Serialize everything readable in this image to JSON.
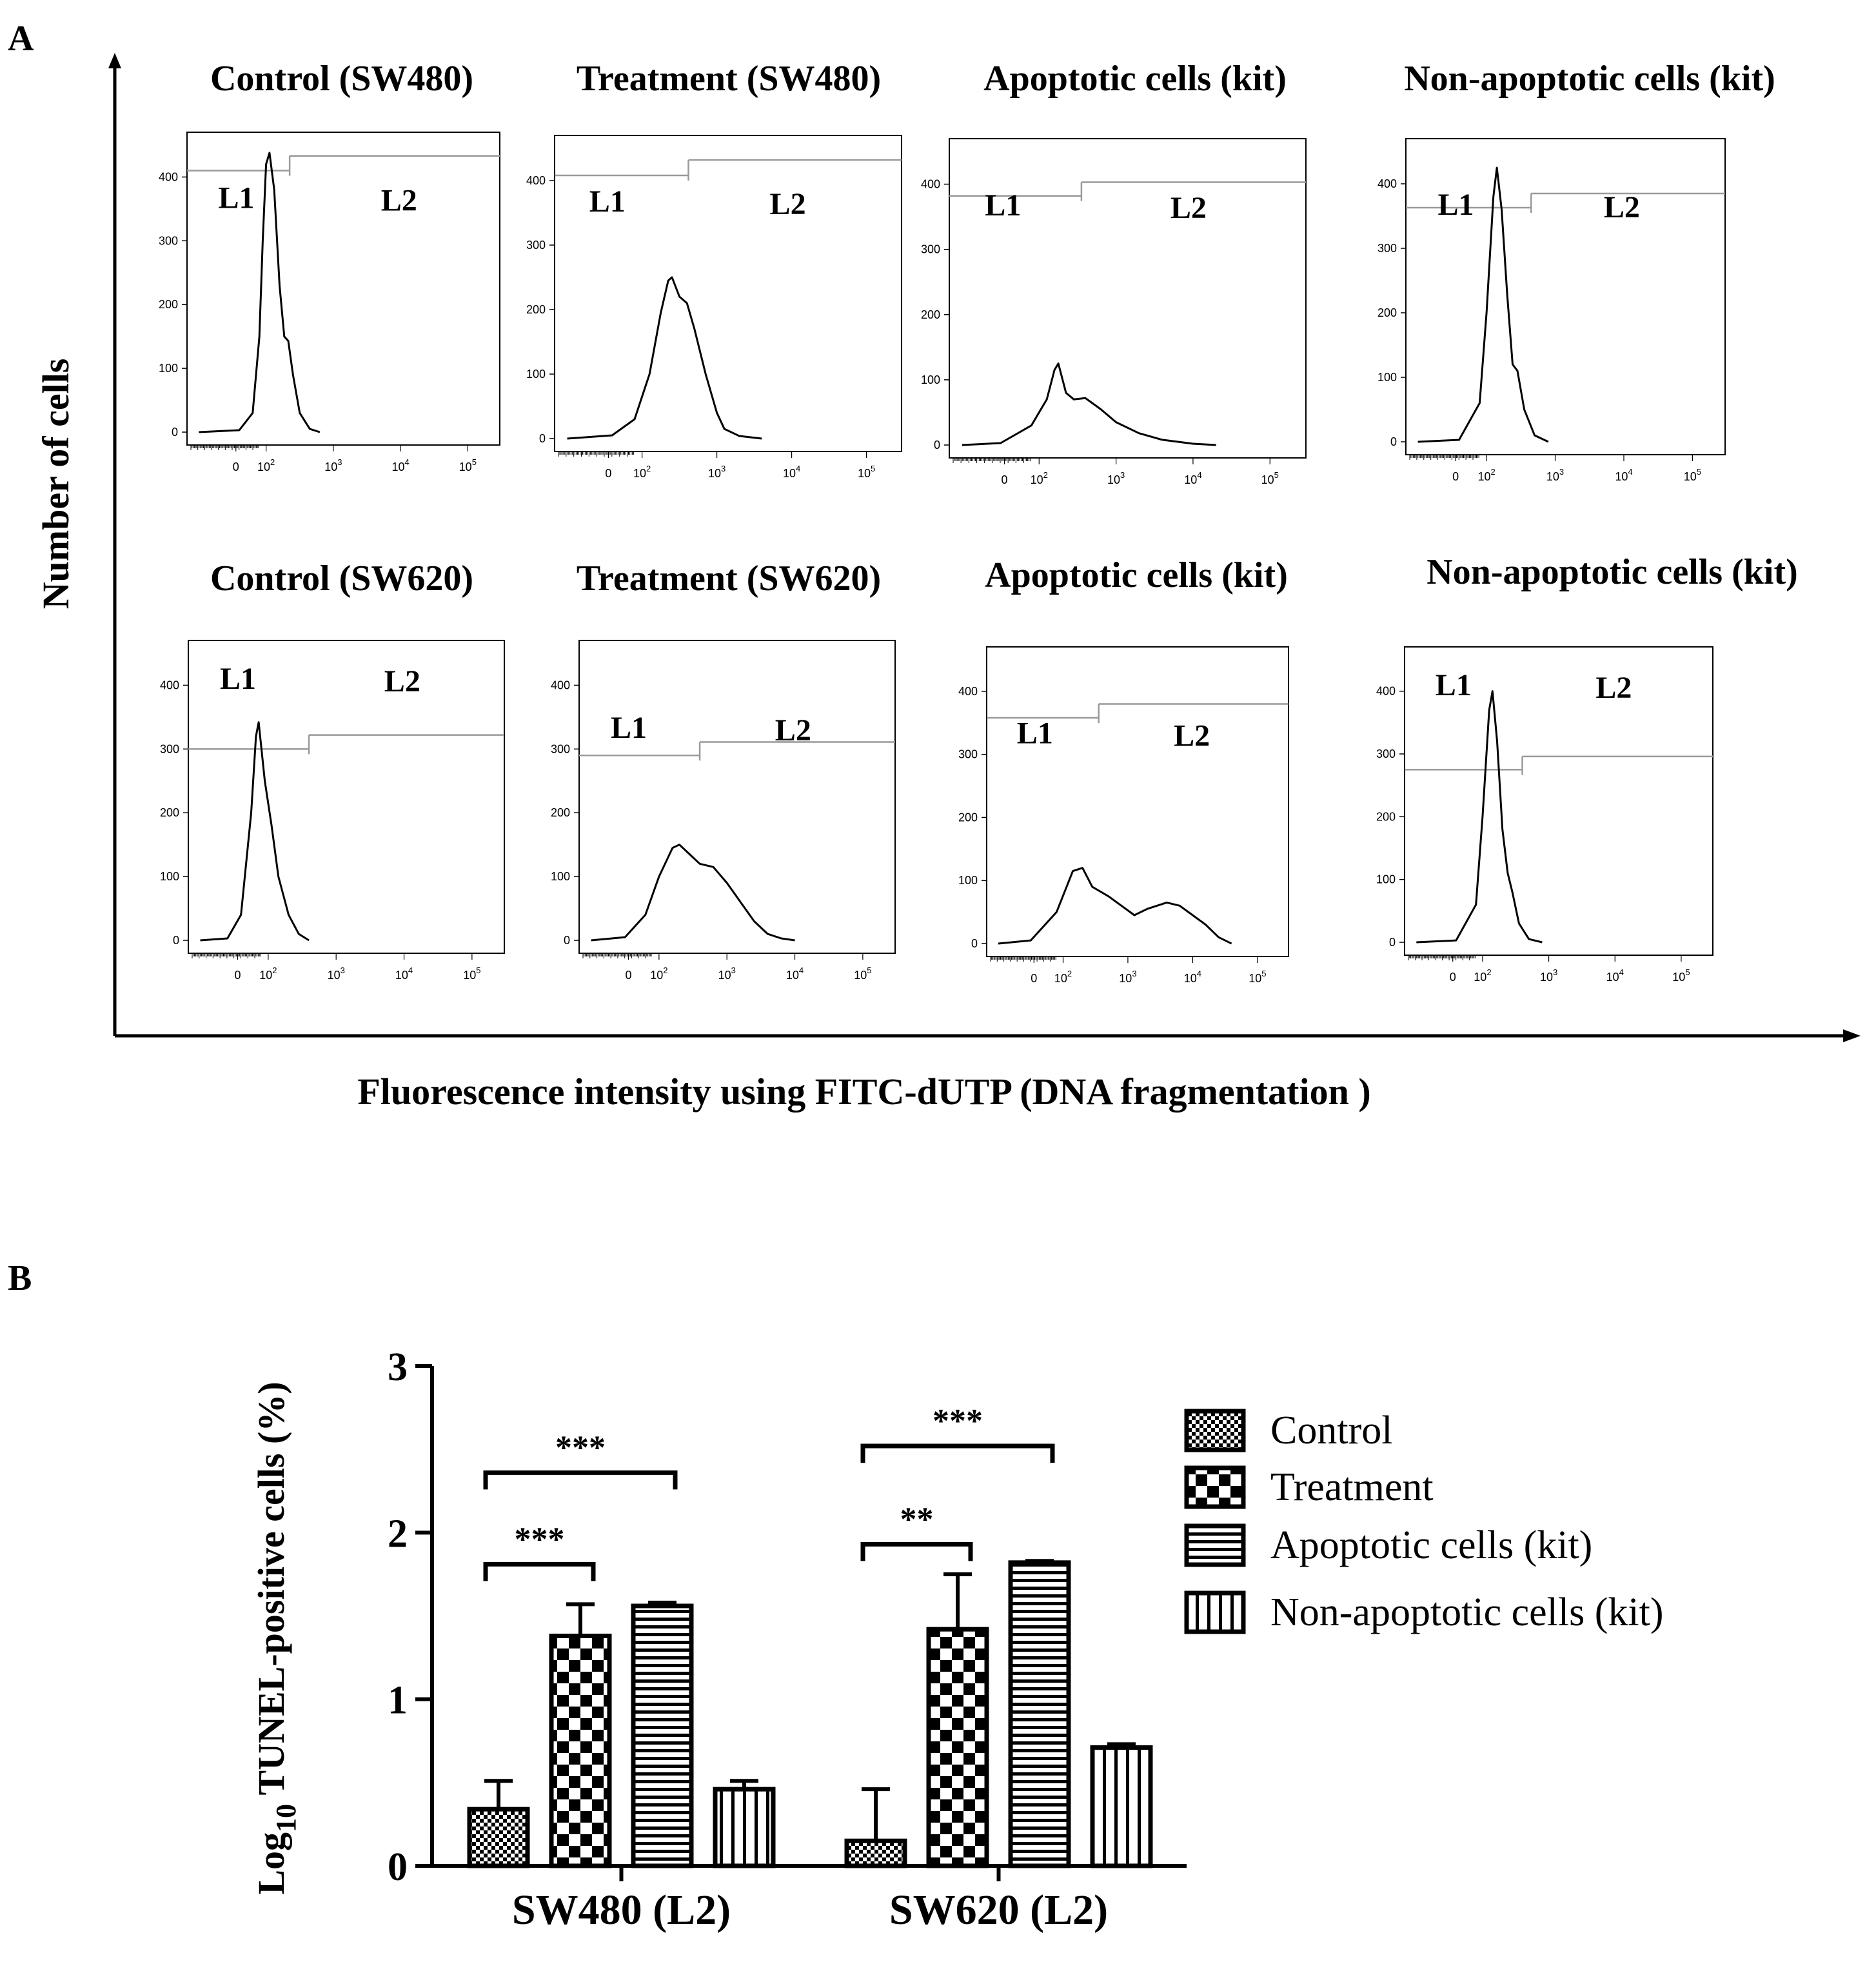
{
  "panel_a": {
    "letter": "A",
    "y_axis_label": "Number of cells",
    "x_axis_label": "Fluorescence intensity using FITC-dUTP (DNA fragmentation )",
    "gate_labels": [
      "L1",
      "L2"
    ]
  },
  "panel_b": {
    "letter": "B"
  },
  "chart_data": [
    {
      "type": "histogram",
      "title": "Control (SW480)",
      "yticks": [
        0,
        100,
        200,
        300,
        400
      ],
      "ylim": [
        0,
        450
      ],
      "xticks": [
        "0",
        "10^2",
        "10^3",
        "10^4",
        "10^5"
      ],
      "xlim_log": [
        0.9,
        5.4
      ],
      "gate_boundary_log": 2.35,
      "gate_l1_count": 410,
      "gate_l2_count": 433,
      "gate_label_row": "upper",
      "curve": [
        [
          1.0,
          0
        ],
        [
          1.6,
          3
        ],
        [
          1.8,
          30
        ],
        [
          1.9,
          150
        ],
        [
          1.95,
          300
        ],
        [
          2.0,
          420
        ],
        [
          2.05,
          438
        ],
        [
          2.12,
          380
        ],
        [
          2.2,
          230
        ],
        [
          2.27,
          150
        ],
        [
          2.33,
          143
        ],
        [
          2.4,
          90
        ],
        [
          2.5,
          30
        ],
        [
          2.65,
          5
        ],
        [
          2.8,
          0
        ]
      ]
    },
    {
      "type": "histogram",
      "title": "Treatment (SW480)",
      "yticks": [
        0,
        100,
        200,
        300,
        400
      ],
      "ylim": [
        0,
        450
      ],
      "xticks": [
        "0",
        "10^2",
        "10^3",
        "10^4",
        "10^5"
      ],
      "xlim_log": [
        0.9,
        5.4
      ],
      "gate_boundary_log": 2.62,
      "gate_l1_count": 408,
      "gate_l2_count": 432,
      "gate_label_row": "upper",
      "curve": [
        [
          1.0,
          0
        ],
        [
          1.6,
          5
        ],
        [
          1.9,
          30
        ],
        [
          2.1,
          100
        ],
        [
          2.25,
          195
        ],
        [
          2.35,
          245
        ],
        [
          2.4,
          250
        ],
        [
          2.5,
          220
        ],
        [
          2.6,
          210
        ],
        [
          2.7,
          170
        ],
        [
          2.85,
          100
        ],
        [
          3.0,
          40
        ],
        [
          3.1,
          15
        ],
        [
          3.3,
          4
        ],
        [
          3.6,
          0
        ]
      ]
    },
    {
      "type": "histogram",
      "title": "Apoptotic cells (kit)",
      "yticks": [
        0,
        100,
        200,
        300,
        400
      ],
      "ylim": [
        0,
        450
      ],
      "xticks": [
        "0",
        "10^2",
        "10^3",
        "10^4",
        "10^5"
      ],
      "xlim_log": [
        0.9,
        5.4
      ],
      "gate_boundary_log": 2.55,
      "gate_l1_count": 382,
      "gate_l2_count": 403,
      "gate_label_row": "upper",
      "curve": [
        [
          1.0,
          0
        ],
        [
          1.5,
          3
        ],
        [
          1.9,
          30
        ],
        [
          2.1,
          70
        ],
        [
          2.2,
          115
        ],
        [
          2.25,
          125
        ],
        [
          2.35,
          80
        ],
        [
          2.45,
          70
        ],
        [
          2.6,
          72
        ],
        [
          2.8,
          55
        ],
        [
          3.0,
          35
        ],
        [
          3.3,
          18
        ],
        [
          3.6,
          8
        ],
        [
          4.0,
          2
        ],
        [
          4.3,
          0
        ]
      ]
    },
    {
      "type": "histogram",
      "title": "Non-apoptotic cells (kit)",
      "yticks": [
        0,
        100,
        200,
        300,
        400
      ],
      "ylim": [
        0,
        450
      ],
      "xticks": [
        "0",
        "10^2",
        "10^3",
        "10^4",
        "10^5"
      ],
      "xlim_log": [
        0.9,
        5.4
      ],
      "gate_boundary_log": 2.65,
      "gate_l1_count": 363,
      "gate_l2_count": 385,
      "gate_label_row": "upper",
      "curve": [
        [
          1.0,
          0
        ],
        [
          1.6,
          3
        ],
        [
          1.9,
          60
        ],
        [
          2.0,
          200
        ],
        [
          2.1,
          380
        ],
        [
          2.15,
          425
        ],
        [
          2.22,
          360
        ],
        [
          2.3,
          230
        ],
        [
          2.38,
          120
        ],
        [
          2.45,
          110
        ],
        [
          2.55,
          50
        ],
        [
          2.7,
          10
        ],
        [
          2.9,
          0
        ]
      ]
    },
    {
      "type": "histogram",
      "title": "Control (SW620)",
      "yticks": [
        0,
        100,
        200,
        300,
        400
      ],
      "ylim": [
        0,
        450
      ],
      "xticks": [
        "0",
        "10^2",
        "10^3",
        "10^4",
        "10^5"
      ],
      "xlim_log": [
        0.9,
        5.4
      ],
      "gate_boundary_log": 2.6,
      "gate_l1_count": 300,
      "gate_l2_count": 322,
      "gate_label_row": "top",
      "curve": [
        [
          1.0,
          0
        ],
        [
          1.4,
          3
        ],
        [
          1.6,
          40
        ],
        [
          1.75,
          200
        ],
        [
          1.82,
          320
        ],
        [
          1.86,
          342
        ],
        [
          1.95,
          250
        ],
        [
          2.05,
          180
        ],
        [
          2.15,
          100
        ],
        [
          2.3,
          40
        ],
        [
          2.45,
          10
        ],
        [
          2.6,
          0
        ]
      ]
    },
    {
      "type": "histogram",
      "title": "Treatment (SW620)",
      "yticks": [
        0,
        100,
        200,
        300,
        400
      ],
      "ylim": [
        0,
        450
      ],
      "xticks": [
        "0",
        "10^2",
        "10^3",
        "10^4",
        "10^5"
      ],
      "xlim_log": [
        0.9,
        5.4
      ],
      "gate_boundary_log": 2.6,
      "gate_l1_count": 290,
      "gate_l2_count": 311,
      "gate_label_row": "lower",
      "curve": [
        [
          1.0,
          0
        ],
        [
          1.5,
          5
        ],
        [
          1.8,
          40
        ],
        [
          2.0,
          100
        ],
        [
          2.2,
          145
        ],
        [
          2.3,
          150
        ],
        [
          2.45,
          135
        ],
        [
          2.6,
          120
        ],
        [
          2.8,
          115
        ],
        [
          3.0,
          90
        ],
        [
          3.2,
          60
        ],
        [
          3.4,
          30
        ],
        [
          3.6,
          10
        ],
        [
          3.8,
          3
        ],
        [
          4.0,
          0
        ]
      ]
    },
    {
      "type": "histogram",
      "title": "Apoptotic cells (kit)",
      "yticks": [
        0,
        100,
        200,
        300,
        400
      ],
      "ylim": [
        0,
        450
      ],
      "xticks": [
        "0",
        "10^2",
        "10^3",
        "10^4",
        "10^5"
      ],
      "xlim_log": [
        0.9,
        5.4
      ],
      "gate_boundary_log": 2.55,
      "gate_l1_count": 358,
      "gate_l2_count": 380,
      "gate_label_row": "lower",
      "curve": [
        [
          1.0,
          0
        ],
        [
          1.5,
          5
        ],
        [
          1.9,
          50
        ],
        [
          2.15,
          115
        ],
        [
          2.3,
          120
        ],
        [
          2.45,
          90
        ],
        [
          2.7,
          75
        ],
        [
          2.9,
          60
        ],
        [
          3.1,
          45
        ],
        [
          3.3,
          55
        ],
        [
          3.6,
          65
        ],
        [
          3.8,
          60
        ],
        [
          4.0,
          45
        ],
        [
          4.2,
          30
        ],
        [
          4.4,
          10
        ],
        [
          4.6,
          0
        ]
      ]
    },
    {
      "type": "histogram",
      "title": "Non-apoptotic cells (kit)",
      "yticks": [
        0,
        100,
        200,
        300,
        400
      ],
      "ylim": [
        0,
        450
      ],
      "xticks": [
        "0",
        "10^2",
        "10^3",
        "10^4",
        "10^5"
      ],
      "xlim_log": [
        0.9,
        5.4
      ],
      "gate_boundary_log": 2.6,
      "gate_l1_count": 275,
      "gate_l2_count": 296,
      "gate_label_row": "top",
      "curve": [
        [
          1.0,
          0
        ],
        [
          1.6,
          3
        ],
        [
          1.9,
          60
        ],
        [
          2.0,
          200
        ],
        [
          2.1,
          370
        ],
        [
          2.15,
          400
        ],
        [
          2.22,
          320
        ],
        [
          2.3,
          180
        ],
        [
          2.38,
          110
        ],
        [
          2.45,
          80
        ],
        [
          2.55,
          30
        ],
        [
          2.7,
          5
        ],
        [
          2.9,
          0
        ]
      ]
    },
    {
      "type": "bar",
      "categories": [
        "SW480 (L2)",
        "SW620 (L2)"
      ],
      "series": [
        {
          "name": "Control",
          "values": [
            0.34,
            0.15
          ],
          "errors": [
            0.17,
            0.31
          ],
          "pattern": "fine-checker"
        },
        {
          "name": "Treatment",
          "values": [
            1.38,
            1.42
          ],
          "errors": [
            0.19,
            0.33
          ],
          "pattern": "checker"
        },
        {
          "name": "Apoptotic cells (kit)",
          "values": [
            1.56,
            1.82
          ],
          "errors": [
            0.02,
            0.01
          ],
          "pattern": "horizontal"
        },
        {
          "name": "Non-apoptotic cells (kit)",
          "values": [
            0.46,
            0.71
          ],
          "errors": [
            0.05,
            0.02
          ],
          "pattern": "vertical"
        }
      ],
      "ylabel": "Log10 TUNEL-positive cells (%)",
      "ylabel_main": "Log",
      "ylabel_sub": "10",
      "ylabel_rest": " TUNEL-positive cells (%)",
      "yticks": [
        0,
        1,
        2,
        3
      ],
      "ylim": [
        0,
        3
      ],
      "significance": [
        {
          "group": 0,
          "from": 0,
          "to": 1,
          "label": "***",
          "level": 1.81
        },
        {
          "group": 0,
          "from": 0,
          "to": 2,
          "label": "***",
          "level": 2.36
        },
        {
          "group": 1,
          "from": 0,
          "to": 1,
          "label": "**",
          "level": 1.93
        },
        {
          "group": 1,
          "from": 0,
          "to": 2,
          "label": "***",
          "level": 2.52
        }
      ],
      "legend_position": "right"
    }
  ]
}
